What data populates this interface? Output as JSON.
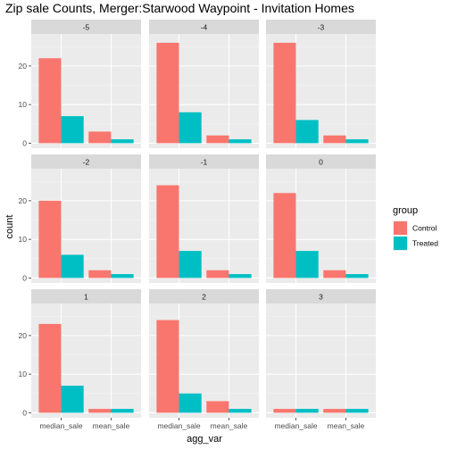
{
  "chart_data": {
    "type": "bar",
    "title": "Zip sale Counts, Merger:Starwood Waypoint - Invitation Homes",
    "xlabel": "agg_var",
    "ylabel": "count",
    "categories": [
      "median_sale",
      "mean_sale"
    ],
    "ylim": [
      0,
      27
    ],
    "yticks": [
      0,
      10,
      20
    ],
    "grid": true,
    "legend": {
      "title": "group",
      "position": "right",
      "entries": [
        {
          "name": "Control",
          "color": "#F8766D"
        },
        {
          "name": "Treated",
          "color": "#00BFC4"
        }
      ]
    },
    "facets": [
      {
        "label": "-5",
        "series": [
          {
            "name": "Control",
            "values": [
              22,
              3
            ]
          },
          {
            "name": "Treated",
            "values": [
              7,
              1
            ]
          }
        ]
      },
      {
        "label": "-4",
        "series": [
          {
            "name": "Control",
            "values": [
              26,
              2
            ]
          },
          {
            "name": "Treated",
            "values": [
              8,
              1
            ]
          }
        ]
      },
      {
        "label": "-3",
        "series": [
          {
            "name": "Control",
            "values": [
              26,
              2
            ]
          },
          {
            "name": "Treated",
            "values": [
              6,
              1
            ]
          }
        ]
      },
      {
        "label": "-2",
        "series": [
          {
            "name": "Control",
            "values": [
              20,
              2
            ]
          },
          {
            "name": "Treated",
            "values": [
              6,
              1
            ]
          }
        ]
      },
      {
        "label": "-1",
        "series": [
          {
            "name": "Control",
            "values": [
              24,
              2
            ]
          },
          {
            "name": "Treated",
            "values": [
              7,
              1
            ]
          }
        ]
      },
      {
        "label": "0",
        "series": [
          {
            "name": "Control",
            "values": [
              22,
              2
            ]
          },
          {
            "name": "Treated",
            "values": [
              7,
              1
            ]
          }
        ]
      },
      {
        "label": "1",
        "series": [
          {
            "name": "Control",
            "values": [
              23,
              1
            ]
          },
          {
            "name": "Treated",
            "values": [
              7,
              1
            ]
          }
        ]
      },
      {
        "label": "2",
        "series": [
          {
            "name": "Control",
            "values": [
              24,
              3
            ]
          },
          {
            "name": "Treated",
            "values": [
              5,
              1
            ]
          }
        ]
      },
      {
        "label": "3",
        "series": [
          {
            "name": "Control",
            "values": [
              1,
              1
            ]
          },
          {
            "name": "Treated",
            "values": [
              1,
              1
            ]
          }
        ]
      }
    ]
  }
}
